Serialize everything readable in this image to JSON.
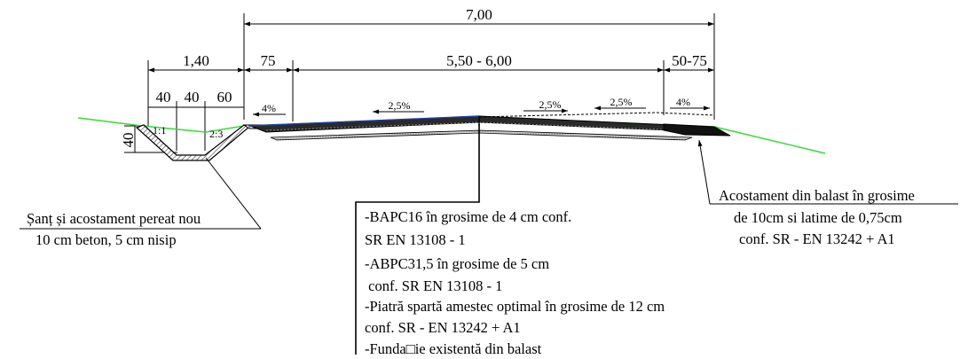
{
  "dimensions": {
    "total_width": "7,00",
    "ditch_width": "1,40",
    "ditch_segments": [
      "40",
      "40",
      "60"
    ],
    "shoulder_left": "75",
    "carriageway": "5,50 - 6,00",
    "shoulder_right": "50-75",
    "ditch_depth": "40"
  },
  "slopes": {
    "shoulder_left": "4%",
    "carriageway_left": "2,5%",
    "carriageway_right": "2,5%",
    "carriageway_right_outer": "2,5%",
    "shoulder_right": "4%",
    "ditch_slope_left": "1:1",
    "ditch_slope_right": "2:3"
  },
  "annotations": {
    "ditch": {
      "line1": "Șanț și acostament pereat  nou",
      "line2": "10 cm beton, 5 cm  nisip"
    },
    "structure": {
      "lines": [
        "-BAPC16 în grosime de 4 cm conf.",
        "SR EN 13108 - 1",
        "-ABPC31,5  în grosime de 5 cm",
        " conf. SR EN 13108 - 1",
        "-Piatră spartă amestec optimal în grosime de 12 cm",
        "conf. SR - EN 13242 + A1",
        "-Funda□ie existentă din balast"
      ]
    },
    "shoulder": {
      "line1": "Acostament din balast în grosime",
      "line2": "de 10cm si latime de 0,75cm",
      "line3": "conf. SR - EN 13242 + A1"
    }
  },
  "colors": {
    "terrain": "#33dd33",
    "overlay": "#1e3fa8",
    "ink": "#000000",
    "hatch": "#777777"
  }
}
